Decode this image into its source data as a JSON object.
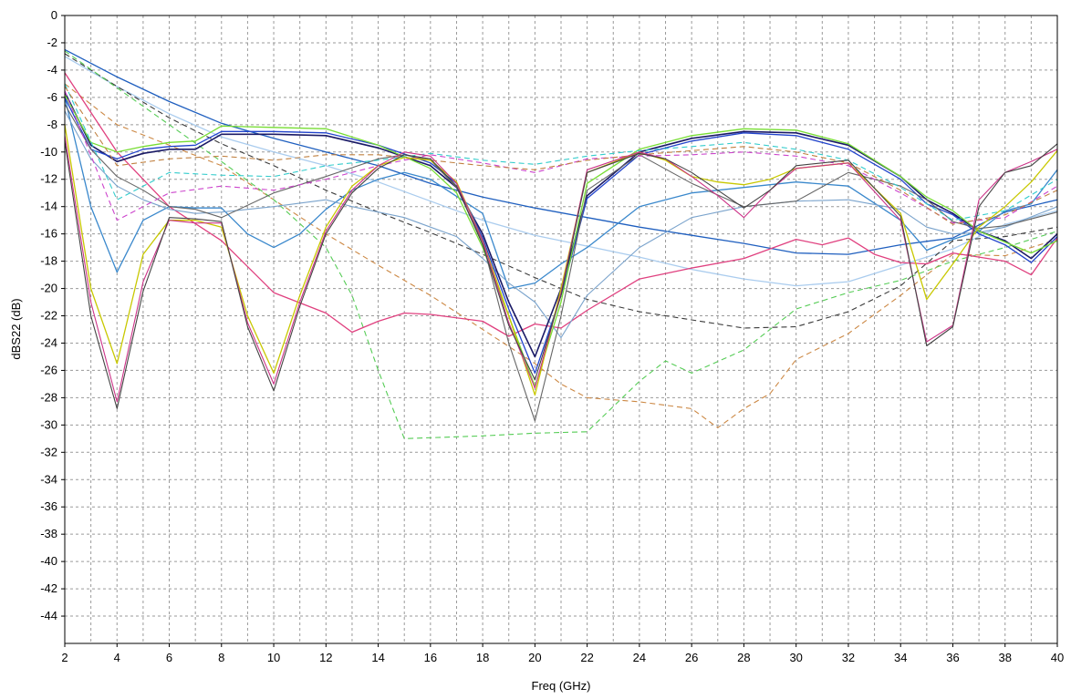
{
  "chart_data": {
    "type": "line",
    "title": "",
    "xlabel": "Freq (GHz)",
    "ylabel": "dBS22 (dB)",
    "xlim": [
      2,
      40
    ],
    "ylim": [
      -46,
      0
    ],
    "xticks": [
      2,
      4,
      6,
      8,
      10,
      12,
      14,
      16,
      18,
      20,
      22,
      24,
      26,
      28,
      30,
      32,
      34,
      36,
      38,
      40
    ],
    "yticks": [
      0,
      -2,
      -4,
      -6,
      -8,
      -10,
      -12,
      -14,
      -16,
      -18,
      -20,
      -22,
      -24,
      -26,
      -28,
      -30,
      -32,
      -34,
      -36,
      -38,
      -40,
      -42,
      -44
    ],
    "grid": true,
    "legend": "none",
    "series": [
      {
        "color": "#1f5fbf",
        "dash": "solid",
        "width": 1.3,
        "x": [
          2,
          4,
          6,
          8,
          10,
          12,
          14,
          16,
          18,
          20,
          22,
          24,
          26,
          28,
          30,
          32,
          34,
          36,
          38,
          40
        ],
        "y": [
          -2.5,
          -4.5,
          -6.3,
          -7.9,
          -9,
          -10,
          -11,
          -12.3,
          -13.3,
          -14.1,
          -14.8,
          -15.5,
          -16.1,
          -16.7,
          -17.4,
          -17.5,
          -16.8,
          -16.3,
          -14.4,
          -13.5
        ]
      },
      {
        "color": "#aaccee",
        "dash": "solid",
        "width": 1.3,
        "x": [
          2,
          4,
          6,
          8,
          10,
          12,
          14,
          16,
          18,
          20,
          22,
          24,
          26,
          28,
          30,
          32,
          34,
          36,
          38,
          40
        ],
        "y": [
          -3,
          -5.2,
          -7.2,
          -8.9,
          -10,
          -11,
          -12.2,
          -13.6,
          -15,
          -16.1,
          -16.9,
          -17.7,
          -18.6,
          -19.3,
          -19.8,
          -19.5,
          -18.3,
          -17.1,
          -15.3,
          -14.3
        ]
      },
      {
        "color": "#3a3a3a",
        "dash": "dash",
        "width": 1.1,
        "x": [
          2,
          4,
          6,
          8,
          10,
          12,
          14,
          16,
          18,
          20,
          22,
          24,
          26,
          28,
          30,
          32,
          34,
          36,
          38,
          40
        ],
        "y": [
          -2.8,
          -5.2,
          -7.5,
          -9.4,
          -11,
          -12.8,
          -14.4,
          -15.9,
          -17.5,
          -19.2,
          -20.8,
          -21.7,
          -22.3,
          -22.9,
          -22.8,
          -21.7,
          -19.8,
          -16.5,
          -16.2,
          -15.5
        ]
      },
      {
        "color": "#cc8844",
        "dash": "dash",
        "width": 1.1,
        "x": [
          2,
          4,
          6,
          8,
          10,
          12,
          14,
          16,
          18,
          20,
          21,
          22,
          24,
          26,
          27,
          28,
          29,
          30,
          32,
          34,
          36,
          38,
          40
        ],
        "y": [
          -5,
          -8,
          -9.5,
          -11,
          -13.5,
          -16,
          -18.3,
          -20.5,
          -23,
          -25.5,
          -27,
          -28,
          -28.3,
          -28.8,
          -30.2,
          -28.8,
          -27.7,
          -25.2,
          -23.3,
          -20.5,
          -17.5,
          -17.6,
          -16.4
        ]
      },
      {
        "color": "#55cc55",
        "dash": "dash",
        "width": 1.1,
        "x": [
          2,
          4,
          6,
          8,
          10,
          12,
          13,
          14,
          15,
          18,
          20,
          22,
          24,
          25,
          26,
          28,
          30,
          32,
          34,
          36,
          38,
          40
        ],
        "y": [
          -2.6,
          -5.3,
          -8,
          -10.7,
          -13.5,
          -17,
          -20.5,
          -26,
          -31,
          -30.8,
          -30.6,
          -30.5,
          -26.8,
          -25.3,
          -26.2,
          -24.5,
          -21.5,
          -20.3,
          -19.4,
          -18,
          -17,
          -15.8
        ]
      },
      {
        "color": "#e0407f",
        "dash": "solid",
        "width": 1.3,
        "x": [
          2,
          4,
          6,
          8,
          10,
          12,
          13,
          14,
          15,
          16,
          18,
          19,
          20,
          21,
          22,
          24,
          26,
          28,
          30,
          31,
          32,
          33,
          34,
          35,
          36,
          38,
          39,
          40
        ],
        "y": [
          -4.2,
          -10,
          -14,
          -16.5,
          -20.3,
          -21.8,
          -23.2,
          -22.4,
          -21.8,
          -21.9,
          -22.4,
          -23.5,
          -22.6,
          -22.9,
          -21.6,
          -19.3,
          -18.5,
          -17.8,
          -16.4,
          -16.8,
          -16.3,
          -17.5,
          -18.1,
          -18.2,
          -17.4,
          -18,
          -19,
          -16.3
        ]
      },
      {
        "color": "#3a88cc",
        "dash": "solid",
        "width": 1.3,
        "x": [
          2,
          3,
          4,
          5,
          6,
          7,
          8,
          9,
          10,
          11,
          12,
          13,
          14,
          15,
          16,
          18,
          19,
          20,
          21,
          22,
          24,
          26,
          28,
          30,
          32,
          34,
          35,
          36,
          37,
          38,
          39,
          40
        ],
        "y": [
          -6,
          -14,
          -18.8,
          -15,
          -14,
          -14.1,
          -14.1,
          -16,
          -17,
          -16,
          -14.2,
          -12.8,
          -12,
          -11.5,
          -12,
          -14.5,
          -20,
          -19.6,
          -18.2,
          -17,
          -14,
          -13,
          -12.6,
          -12.2,
          -12.5,
          -15,
          -17.2,
          -16.4,
          -15.8,
          -14.3,
          -13.8,
          -11.3
        ]
      },
      {
        "color": "#7aa3cc",
        "dash": "solid",
        "width": 1.1,
        "x": [
          2,
          3,
          4,
          5,
          6,
          7,
          8,
          10,
          12,
          13,
          14,
          15,
          16,
          17,
          18,
          19,
          20,
          21,
          22,
          24,
          26,
          28,
          30,
          32,
          34,
          35,
          36,
          37,
          38,
          40
        ],
        "y": [
          -7,
          -10.5,
          -12.5,
          -13.5,
          -14.2,
          -14.5,
          -14.4,
          -14,
          -13.5,
          -14,
          -14.4,
          -14.8,
          -15.5,
          -16.2,
          -17.8,
          -19.6,
          -21,
          -23.6,
          -20.5,
          -17,
          -14.8,
          -14,
          -13.6,
          -13.5,
          -14.2,
          -15.5,
          -16,
          -15.9,
          -15.5,
          -14
        ]
      },
      {
        "color": "#1a1a66",
        "dash": "solid",
        "width": 1.6,
        "x": [
          2,
          3,
          4,
          5,
          6,
          7,
          8,
          10,
          12,
          14,
          16,
          17,
          18,
          19,
          20,
          21,
          22,
          24,
          26,
          28,
          30,
          32,
          34,
          35,
          36,
          37,
          38,
          39,
          40
        ],
        "y": [
          -5.6,
          -9.5,
          -10.7,
          -10.1,
          -9.8,
          -9.8,
          -8.7,
          -8.7,
          -8.8,
          -9.7,
          -11,
          -12.6,
          -16,
          -21,
          -25,
          -20,
          -13.2,
          -10,
          -9,
          -8.5,
          -8.6,
          -9.5,
          -11.8,
          -13.5,
          -14.5,
          -15.8,
          -16.5,
          -17.8,
          -16
        ]
      },
      {
        "color": "#2244cc",
        "dash": "solid",
        "width": 1.3,
        "x": [
          2,
          3,
          4,
          5,
          6,
          7,
          8,
          10,
          12,
          14,
          16,
          17,
          18,
          19,
          20,
          21,
          22,
          24,
          26,
          28,
          30,
          32,
          34,
          35,
          36,
          37,
          38,
          39,
          40
        ],
        "y": [
          -6,
          -9.8,
          -10.5,
          -9.8,
          -9.6,
          -9.5,
          -8.5,
          -8.5,
          -8.6,
          -9.5,
          -10.8,
          -12.3,
          -16.3,
          -21.5,
          -26.2,
          -20.5,
          -13.4,
          -10.2,
          -9.2,
          -8.6,
          -8.8,
          -9.8,
          -12,
          -13.8,
          -14.6,
          -16,
          -16.8,
          -18.1,
          -16.2
        ]
      },
      {
        "color": "#77dd33",
        "dash": "solid",
        "width": 1.3,
        "x": [
          2,
          3,
          4,
          5,
          6,
          7,
          8,
          10,
          12,
          14,
          16,
          17,
          18,
          19,
          20,
          21,
          22,
          24,
          26,
          28,
          30,
          32,
          34,
          35,
          36,
          37,
          38,
          39,
          40
        ],
        "y": [
          -5.8,
          -9.3,
          -10,
          -9.6,
          -9.3,
          -9.2,
          -8.1,
          -8.2,
          -8.3,
          -9.5,
          -11.2,
          -13,
          -17,
          -22,
          -27.2,
          -21,
          -12.3,
          -9.8,
          -8.8,
          -8.3,
          -8.4,
          -9.4,
          -11.8,
          -13.3,
          -14.3,
          -15.8,
          -16.6,
          -17.4,
          -16.5
        ]
      },
      {
        "color": "#666666",
        "dash": "solid",
        "width": 1.1,
        "x": [
          2,
          3,
          4,
          5,
          6,
          7,
          8,
          10,
          12,
          14,
          15,
          16,
          17,
          18,
          19,
          20,
          21,
          22,
          24,
          26,
          28,
          30,
          32,
          34,
          35,
          36,
          37,
          38,
          40
        ],
        "y": [
          -6.5,
          -9.8,
          -11.8,
          -12.8,
          -14,
          -14.2,
          -14.8,
          -13,
          -11.8,
          -10.5,
          -10.2,
          -10.6,
          -12.6,
          -16.6,
          -24,
          -29.7,
          -22,
          -12.8,
          -10.2,
          -12.3,
          -14,
          -13.6,
          -11.5,
          -12.5,
          -13.5,
          -15.1,
          -15.6,
          -15.4,
          -14.4
        ]
      },
      {
        "color": "#cc44cc",
        "dash": "dash",
        "width": 1.1,
        "x": [
          2,
          4,
          6,
          8,
          10,
          12,
          14,
          16,
          18,
          20,
          22,
          24,
          26,
          28,
          30,
          32,
          34,
          36,
          38,
          40
        ],
        "y": [
          -5.5,
          -15,
          -13,
          -12.5,
          -12.8,
          -12,
          -11,
          -10.2,
          -10.8,
          -11.5,
          -10.5,
          -10.3,
          -10.2,
          -10,
          -10.3,
          -11,
          -13,
          -15.2,
          -14.8,
          -12.5
        ]
      },
      {
        "color": "#33cccc",
        "dash": "dash",
        "width": 1.1,
        "x": [
          2,
          4,
          6,
          8,
          10,
          12,
          14,
          16,
          18,
          20,
          22,
          24,
          26,
          28,
          30,
          32,
          34,
          36,
          38,
          40
        ],
        "y": [
          -5,
          -13.5,
          -11.5,
          -11.7,
          -11.8,
          -11,
          -10.6,
          -10.1,
          -10.6,
          -10.9,
          -10.3,
          -9.9,
          -9.6,
          -9.3,
          -9.8,
          -10.6,
          -12.6,
          -15,
          -14.3,
          -12
        ]
      },
      {
        "color": "#c08040",
        "dash": "dash",
        "width": 1.1,
        "x": [
          2,
          4,
          6,
          8,
          10,
          12,
          14,
          16,
          18,
          20,
          22,
          24,
          26,
          28,
          30,
          32,
          34,
          36,
          38,
          40
        ],
        "y": [
          -5.2,
          -11,
          -10.5,
          -10.3,
          -10.6,
          -10.2,
          -10.2,
          -10.6,
          -11,
          -11.3,
          -10.6,
          -10.2,
          -9.9,
          -9.6,
          -10,
          -10.8,
          -12.8,
          -15.3,
          -14.6,
          -12.8
        ]
      },
      {
        "color": "#c8c800",
        "dash": "solid",
        "width": 1.3,
        "x": [
          2,
          3,
          4,
          5,
          6,
          7,
          8,
          9,
          10,
          11,
          12,
          13,
          14,
          15,
          16,
          17,
          18,
          19,
          20,
          21,
          22,
          24,
          25,
          26,
          27,
          28,
          29,
          30,
          32,
          34,
          35,
          36,
          37,
          38,
          39,
          40
        ],
        "y": [
          -8,
          -20,
          -25.5,
          -17.5,
          -15,
          -15,
          -15.5,
          -22,
          -26.2,
          -20.5,
          -15.5,
          -12.5,
          -11,
          -10.4,
          -10.6,
          -12.2,
          -16.5,
          -22,
          -27.8,
          -20,
          -11.5,
          -10,
          -10.6,
          -11.8,
          -12.2,
          -12.4,
          -12,
          -11.2,
          -10.8,
          -14.5,
          -20.8,
          -18.2,
          -15.5,
          -14,
          -12.2,
          -9.9
        ]
      },
      {
        "color": "#cc3388",
        "dash": "solid",
        "width": 1.1,
        "x": [
          2,
          3,
          4,
          5,
          6,
          7,
          8,
          9,
          10,
          11,
          12,
          13,
          14,
          15,
          16,
          17,
          18,
          19,
          20,
          21,
          22,
          24,
          25,
          26,
          27,
          28,
          29,
          30,
          32,
          34,
          35,
          36,
          37,
          38,
          39,
          40
        ],
        "y": [
          -8.8,
          -21,
          -28.3,
          -19.5,
          -15,
          -15.2,
          -15.2,
          -22.5,
          -27,
          -21,
          -15.8,
          -12.8,
          -11,
          -10,
          -10.3,
          -12.3,
          -16.5,
          -22.5,
          -27.3,
          -20.3,
          -11.3,
          -10,
          -10.5,
          -11.8,
          -13.2,
          -14.8,
          -12.8,
          -11.2,
          -10.8,
          -15,
          -23.9,
          -22.7,
          -13.5,
          -11.5,
          -10.7,
          -9.8
        ]
      },
      {
        "color": "#444444",
        "dash": "solid",
        "width": 1.1,
        "x": [
          2,
          3,
          4,
          5,
          6,
          7,
          8,
          9,
          10,
          11,
          12,
          13,
          14,
          15,
          16,
          17,
          18,
          19,
          20,
          21,
          22,
          24,
          25,
          26,
          27,
          28,
          29,
          30,
          32,
          34,
          35,
          36,
          37,
          38,
          39,
          40
        ],
        "y": [
          -9.2,
          -22,
          -28.8,
          -20.2,
          -14.8,
          -14.9,
          -15.1,
          -22.8,
          -27.5,
          -21.3,
          -16,
          -13,
          -11.2,
          -10.2,
          -10.5,
          -12.5,
          -16.8,
          -22.7,
          -26.7,
          -20.5,
          -11.5,
          -10.1,
          -10.5,
          -11.5,
          -12.8,
          -14.1,
          -12.8,
          -11,
          -10.6,
          -14.7,
          -24.2,
          -22.8,
          -14,
          -11.5,
          -11,
          -9.4
        ]
      }
    ]
  }
}
